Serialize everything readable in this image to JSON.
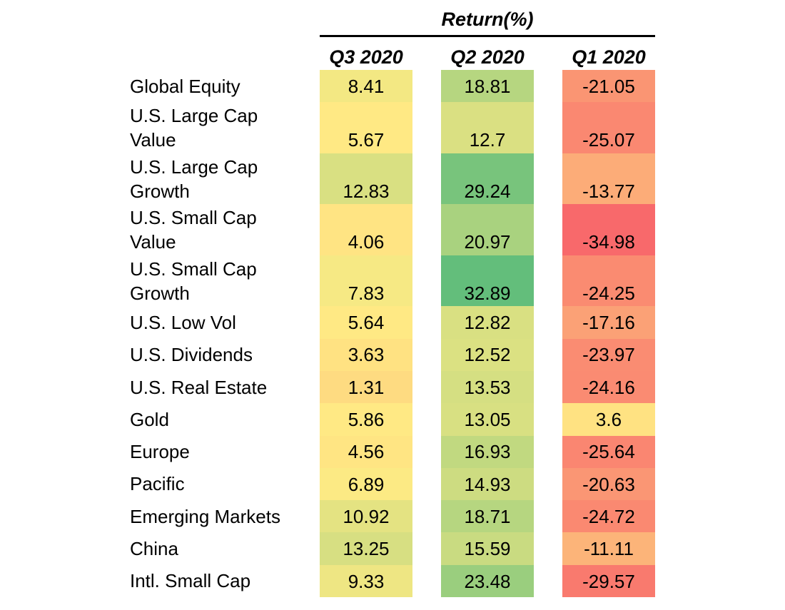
{
  "chart_data": {
    "type": "table",
    "title": "Return(%)",
    "columns": [
      "Q3 2020",
      "Q2 2020",
      "Q1 2020"
    ],
    "rows": [
      {
        "label": "Global Equity",
        "values": [
          "8.41",
          "18.81",
          "-21.05"
        ]
      },
      {
        "label": "U.S. Large Cap\nValue",
        "values": [
          "5.67",
          "12.7",
          "-25.07"
        ]
      },
      {
        "label": "U.S. Large Cap\nGrowth",
        "values": [
          "12.83",
          "29.24",
          "-13.77"
        ]
      },
      {
        "label": "U.S. Small Cap\nValue",
        "values": [
          "4.06",
          "20.97",
          "-34.98"
        ]
      },
      {
        "label": "U.S. Small Cap\nGrowth",
        "values": [
          "7.83",
          "32.89",
          "-24.25"
        ]
      },
      {
        "label": "U.S. Low Vol",
        "values": [
          "5.64",
          "12.82",
          "-17.16"
        ]
      },
      {
        "label": "U.S. Dividends",
        "values": [
          "3.63",
          "12.52",
          "-23.97"
        ]
      },
      {
        "label": "U.S. Real Estate",
        "values": [
          "1.31",
          "13.53",
          "-24.16"
        ]
      },
      {
        "label": "Gold",
        "values": [
          "5.86",
          "13.05",
          "3.6"
        ]
      },
      {
        "label": "Europe",
        "values": [
          "4.56",
          "16.93",
          "-25.64"
        ]
      },
      {
        "label": "Pacific",
        "values": [
          "6.89",
          "14.93",
          "-20.63"
        ]
      },
      {
        "label": "Emerging Markets",
        "values": [
          "10.92",
          "18.71",
          "-24.72"
        ]
      },
      {
        "label": "China",
        "values": [
          "13.25",
          "15.59",
          "-11.11"
        ]
      },
      {
        "label": "Intl. Small Cap",
        "values": [
          "9.33",
          "23.48",
          "-29.57"
        ]
      }
    ],
    "color_scale": {
      "min_color": "#f8696b",
      "mid_color": "#ffeb84",
      "max_color": "#63be7b"
    }
  }
}
